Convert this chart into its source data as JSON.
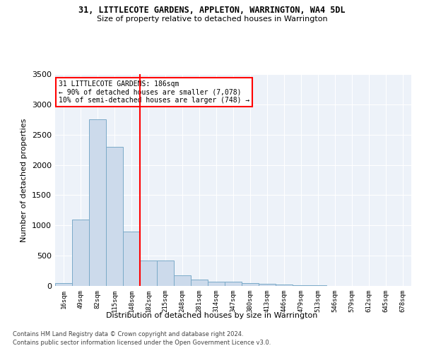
{
  "title": "31, LITTLECOTE GARDENS, APPLETON, WARRINGTON, WA4 5DL",
  "subtitle": "Size of property relative to detached houses in Warrington",
  "xlabel": "Distribution of detached houses by size in Warrington",
  "ylabel": "Number of detached properties",
  "bar_color": "#ccdaeb",
  "bar_edge_color": "#7aaac8",
  "bg_color": "#edf2f9",
  "grid_color": "#ffffff",
  "redline_x": 4,
  "annotation_text": "31 LITTLECOTE GARDENS: 186sqm\n← 90% of detached houses are smaller (7,078)\n10% of semi-detached houses are larger (748) →",
  "annotation_box_color": "white",
  "annotation_box_edge": "red",
  "redline_color": "red",
  "footer1": "Contains HM Land Registry data © Crown copyright and database right 2024.",
  "footer2": "Contains public sector information licensed under the Open Government Licence v3.0.",
  "categories": [
    "16sqm",
    "49sqm",
    "82sqm",
    "115sqm",
    "148sqm",
    "182sqm",
    "215sqm",
    "248sqm",
    "281sqm",
    "314sqm",
    "347sqm",
    "380sqm",
    "413sqm",
    "446sqm",
    "479sqm",
    "513sqm",
    "546sqm",
    "579sqm",
    "612sqm",
    "645sqm",
    "678sqm"
  ],
  "values": [
    50,
    1100,
    2750,
    2300,
    900,
    425,
    425,
    175,
    100,
    75,
    65,
    50,
    30,
    20,
    10,
    8,
    5,
    3,
    2,
    1,
    1
  ],
  "ylim": [
    0,
    3500
  ],
  "yticks": [
    0,
    500,
    1000,
    1500,
    2000,
    2500,
    3000,
    3500
  ]
}
